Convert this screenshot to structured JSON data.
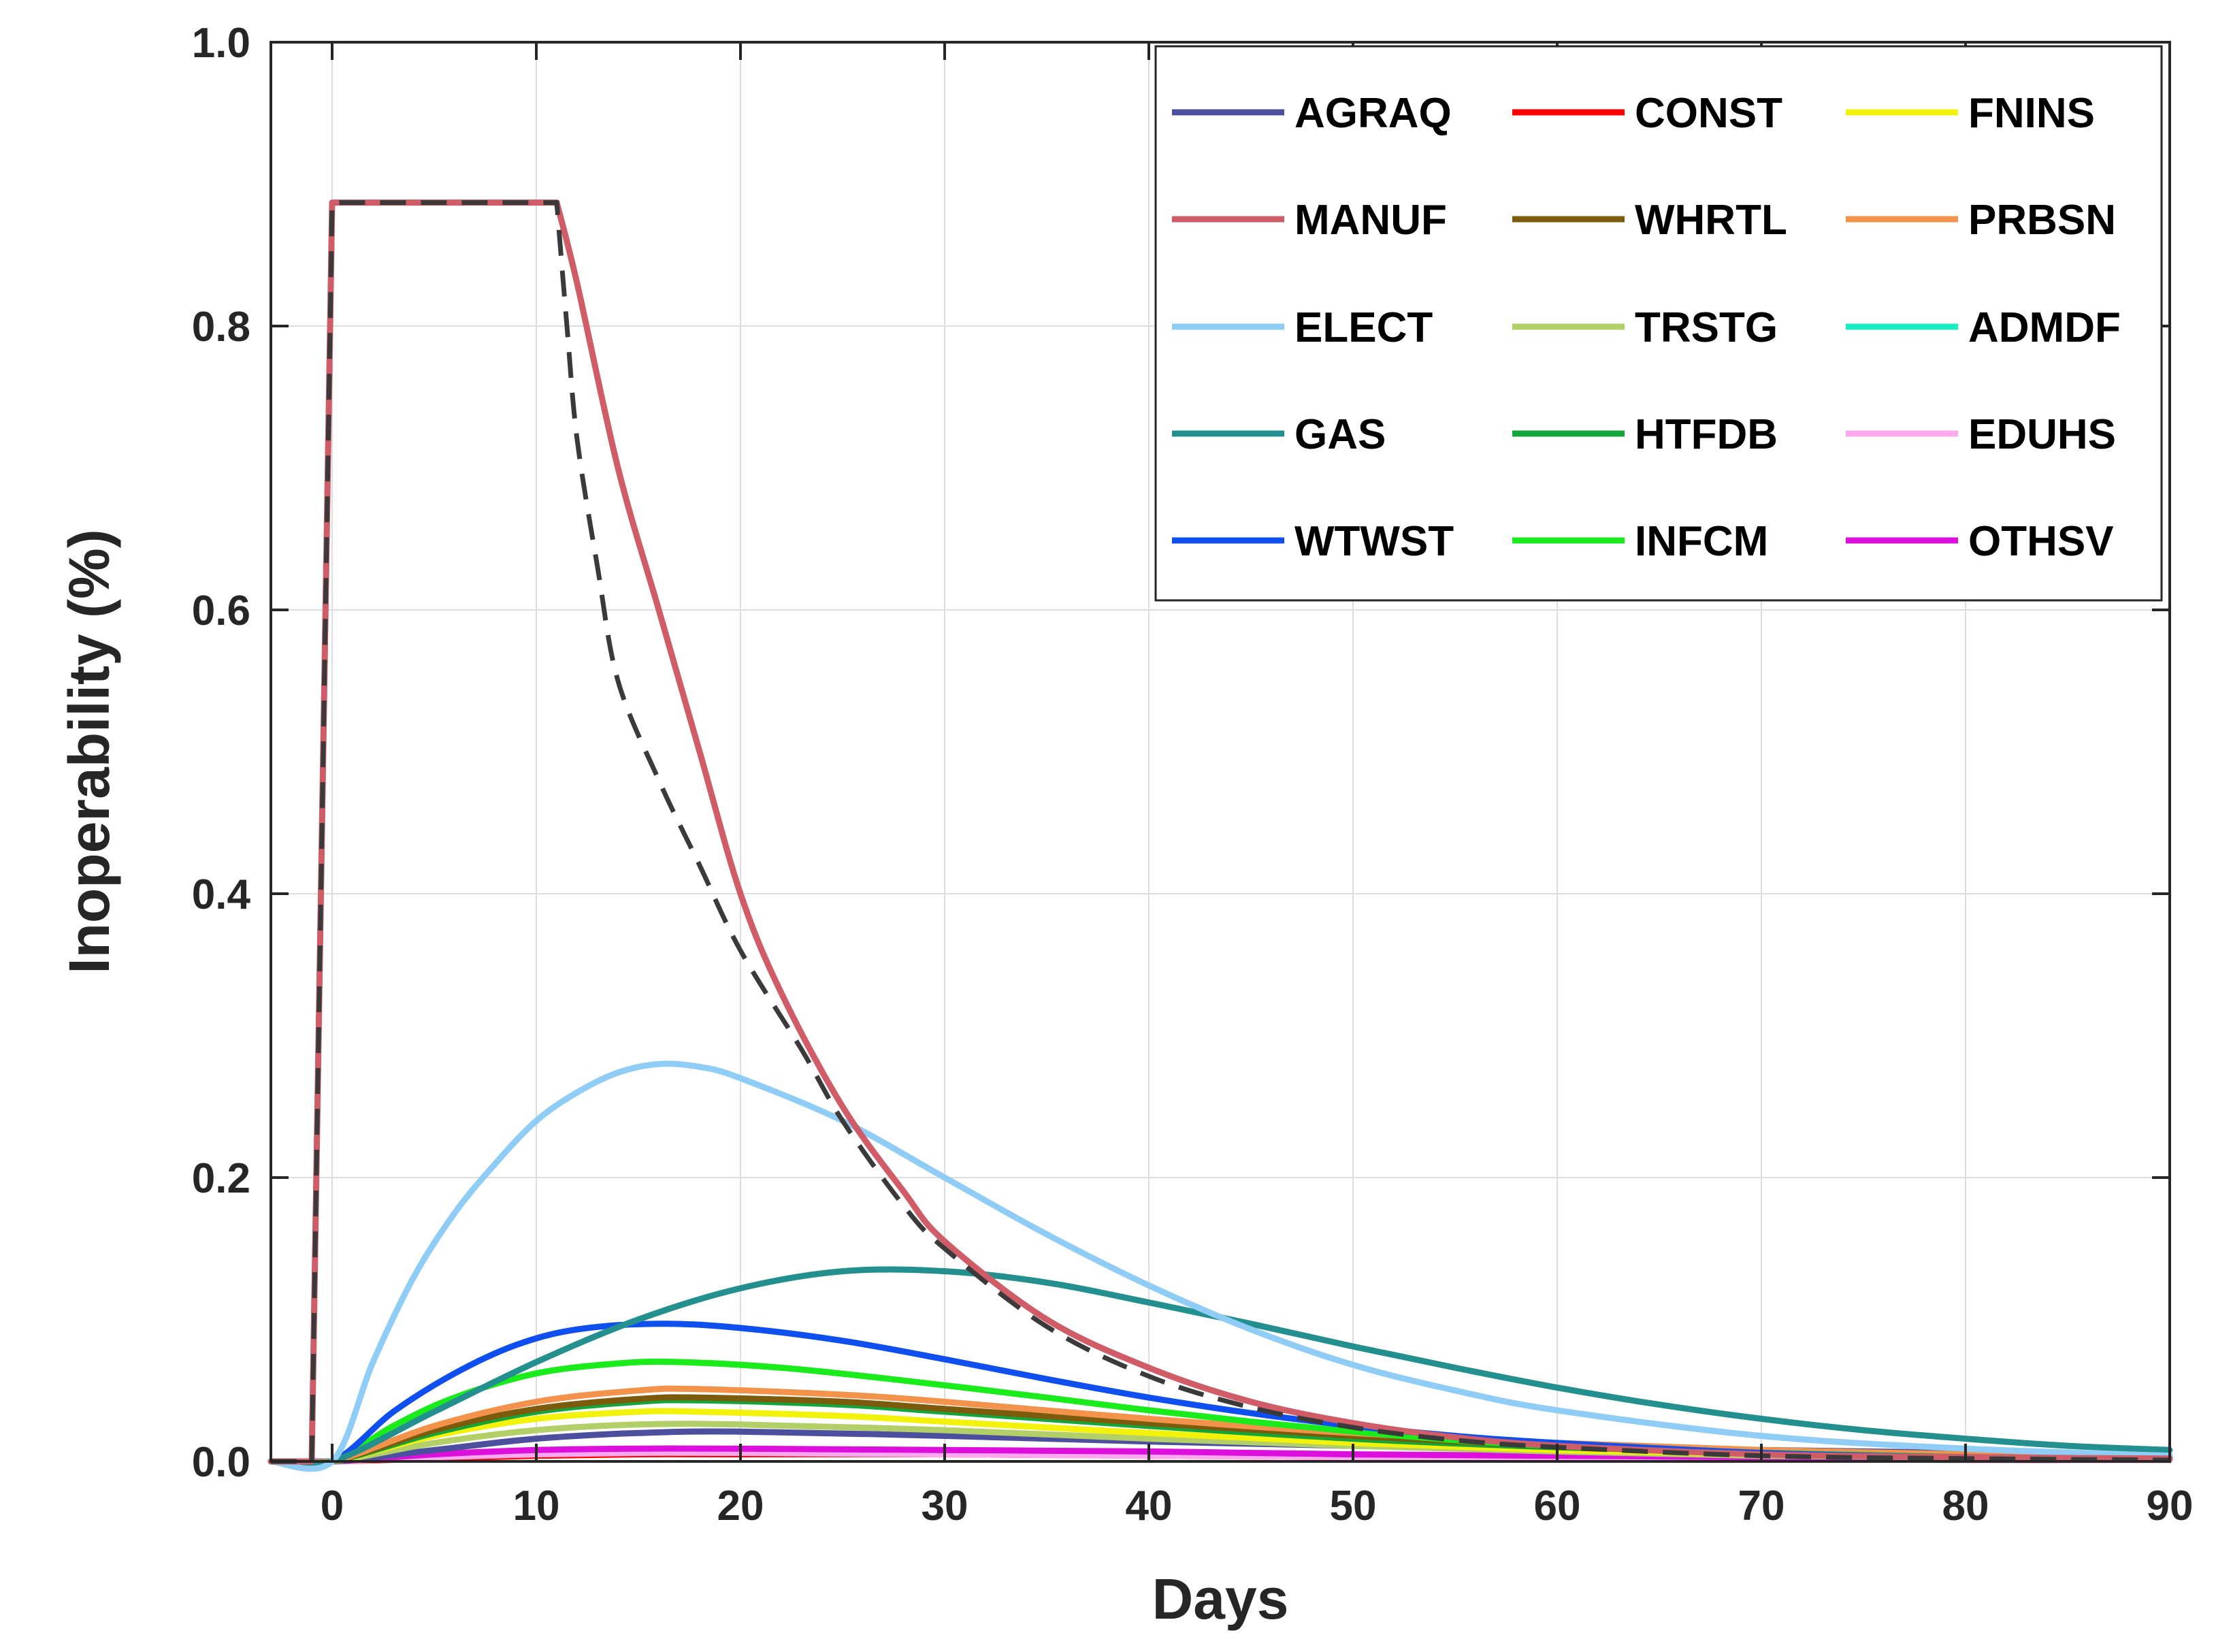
{
  "chart_data": {
    "type": "line",
    "title": "",
    "xlabel": "Days",
    "ylabel": "Inoperability (%)",
    "xlim": [
      -3,
      90
    ],
    "ylim": [
      0,
      1
    ],
    "grid": true,
    "legend_position": "top-right",
    "x_ticks": [
      0,
      10,
      20,
      30,
      40,
      50,
      60,
      70,
      80,
      90
    ],
    "x_tick_labels": [
      "0",
      "10",
      "20",
      "30",
      "40",
      "50",
      "60",
      "70",
      "80",
      "90"
    ],
    "y_ticks": [
      0,
      0.2,
      0.4,
      0.6,
      0.8,
      1.0
    ],
    "y_tick_labels": [
      "0.0",
      "0.2",
      "0.4",
      "0.6",
      "0.8",
      "1.0"
    ],
    "series": [
      {
        "name": "AGRAQ",
        "color": "#4b4f9e",
        "points": [
          [
            -3,
            0
          ],
          [
            0,
            0
          ],
          [
            5,
            0.008
          ],
          [
            10,
            0.016
          ],
          [
            15,
            0.02
          ],
          [
            20,
            0.021
          ],
          [
            30,
            0.018
          ],
          [
            40,
            0.014
          ],
          [
            50,
            0.011
          ],
          [
            60,
            0.009
          ],
          [
            70,
            0.008
          ],
          [
            80,
            0.006
          ],
          [
            90,
            0.004
          ]
        ]
      },
      {
        "name": "CONST",
        "color": "#ff0000",
        "points": [
          [
            -3,
            0
          ],
          [
            0,
            0
          ],
          [
            5,
            0.002
          ],
          [
            10,
            0.004
          ],
          [
            15,
            0.005
          ],
          [
            20,
            0.005
          ],
          [
            30,
            0.005
          ],
          [
            40,
            0.004
          ],
          [
            50,
            0.003
          ],
          [
            60,
            0.002
          ],
          [
            70,
            0.002
          ],
          [
            80,
            0.001
          ],
          [
            90,
            0.001
          ]
        ]
      },
      {
        "name": "FNINS",
        "color": "#f2f20a",
        "points": [
          [
            -3,
            0
          ],
          [
            0,
            0
          ],
          [
            5,
            0.018
          ],
          [
            10,
            0.03
          ],
          [
            15,
            0.035
          ],
          [
            18,
            0.035
          ],
          [
            25,
            0.032
          ],
          [
            30,
            0.028
          ],
          [
            40,
            0.02
          ],
          [
            50,
            0.013
          ],
          [
            60,
            0.008
          ],
          [
            70,
            0.005
          ],
          [
            80,
            0.003
          ],
          [
            90,
            0.002
          ]
        ]
      },
      {
        "name": "MANUF",
        "color": "#cf5c66",
        "points": [
          [
            -3,
            0
          ],
          [
            -1,
            0
          ],
          [
            0,
            0.887
          ],
          [
            11,
            0.887
          ],
          [
            12,
            0.83
          ],
          [
            14,
            0.7
          ],
          [
            16,
            0.6
          ],
          [
            18,
            0.5
          ],
          [
            20,
            0.4
          ],
          [
            22,
            0.33
          ],
          [
            25,
            0.25
          ],
          [
            28,
            0.19
          ],
          [
            30,
            0.155
          ],
          [
            35,
            0.1
          ],
          [
            40,
            0.066
          ],
          [
            45,
            0.042
          ],
          [
            50,
            0.027
          ],
          [
            55,
            0.017
          ],
          [
            60,
            0.011
          ],
          [
            70,
            0.005
          ],
          [
            80,
            0.003
          ],
          [
            90,
            0.002
          ]
        ]
      },
      {
        "name": "WHRTL",
        "color": "#7c5c0c",
        "points": [
          [
            -3,
            0
          ],
          [
            0,
            0
          ],
          [
            5,
            0.022
          ],
          [
            10,
            0.037
          ],
          [
            15,
            0.044
          ],
          [
            18,
            0.045
          ],
          [
            25,
            0.042
          ],
          [
            30,
            0.037
          ],
          [
            40,
            0.027
          ],
          [
            50,
            0.018
          ],
          [
            60,
            0.011
          ],
          [
            70,
            0.007
          ],
          [
            80,
            0.004
          ],
          [
            90,
            0.002
          ]
        ]
      },
      {
        "name": "PRBSN",
        "color": "#f3924b",
        "points": [
          [
            -3,
            0
          ],
          [
            0,
            0
          ],
          [
            5,
            0.025
          ],
          [
            10,
            0.042
          ],
          [
            15,
            0.05
          ],
          [
            18,
            0.051
          ],
          [
            25,
            0.047
          ],
          [
            30,
            0.042
          ],
          [
            40,
            0.03
          ],
          [
            50,
            0.02
          ],
          [
            60,
            0.013
          ],
          [
            70,
            0.008
          ],
          [
            80,
            0.005
          ],
          [
            90,
            0.003
          ]
        ]
      },
      {
        "name": "ELECT",
        "color": "#8fcdf7",
        "points": [
          [
            -3,
            0
          ],
          [
            0,
            0
          ],
          [
            2,
            0.07
          ],
          [
            4,
            0.13
          ],
          [
            6,
            0.175
          ],
          [
            8,
            0.21
          ],
          [
            10,
            0.24
          ],
          [
            12,
            0.26
          ],
          [
            14,
            0.274
          ],
          [
            16,
            0.28
          ],
          [
            18,
            0.278
          ],
          [
            20,
            0.27
          ],
          [
            25,
            0.24
          ],
          [
            30,
            0.2
          ],
          [
            35,
            0.16
          ],
          [
            40,
            0.124
          ],
          [
            45,
            0.093
          ],
          [
            50,
            0.068
          ],
          [
            55,
            0.05
          ],
          [
            60,
            0.036
          ],
          [
            70,
            0.018
          ],
          [
            80,
            0.009
          ],
          [
            90,
            0.004
          ]
        ]
      },
      {
        "name": "TRSTG",
        "color": "#b2cf68",
        "points": [
          [
            -3,
            0
          ],
          [
            0,
            0
          ],
          [
            5,
            0.013
          ],
          [
            10,
            0.022
          ],
          [
            15,
            0.026
          ],
          [
            20,
            0.026
          ],
          [
            30,
            0.022
          ],
          [
            40,
            0.016
          ],
          [
            50,
            0.011
          ],
          [
            60,
            0.007
          ],
          [
            70,
            0.004
          ],
          [
            80,
            0.003
          ],
          [
            90,
            0.002
          ]
        ]
      },
      {
        "name": "ADMDF",
        "color": "#18ecc0",
        "points": [
          [
            -3,
            0
          ],
          [
            0,
            0
          ],
          [
            5,
            0.004
          ],
          [
            10,
            0.006
          ],
          [
            15,
            0.007
          ],
          [
            20,
            0.007
          ],
          [
            30,
            0.006
          ],
          [
            40,
            0.005
          ],
          [
            50,
            0.004
          ],
          [
            60,
            0.003
          ],
          [
            70,
            0.002
          ],
          [
            80,
            0.001
          ],
          [
            90,
            0.001
          ]
        ]
      },
      {
        "name": "GAS",
        "color": "#238f8f",
        "points": [
          [
            -3,
            0
          ],
          [
            0,
            0
          ],
          [
            5,
            0.035
          ],
          [
            10,
            0.07
          ],
          [
            15,
            0.1
          ],
          [
            20,
            0.122
          ],
          [
            25,
            0.134
          ],
          [
            30,
            0.134
          ],
          [
            35,
            0.126
          ],
          [
            40,
            0.112
          ],
          [
            45,
            0.097
          ],
          [
            50,
            0.081
          ],
          [
            55,
            0.066
          ],
          [
            60,
            0.052
          ],
          [
            65,
            0.04
          ],
          [
            70,
            0.03
          ],
          [
            75,
            0.022
          ],
          [
            80,
            0.016
          ],
          [
            85,
            0.011
          ],
          [
            90,
            0.008
          ]
        ]
      },
      {
        "name": "HTFDB",
        "color": "#13a53a",
        "points": [
          [
            -3,
            0
          ],
          [
            0,
            0
          ],
          [
            5,
            0.02
          ],
          [
            10,
            0.035
          ],
          [
            15,
            0.042
          ],
          [
            18,
            0.043
          ],
          [
            25,
            0.04
          ],
          [
            30,
            0.035
          ],
          [
            40,
            0.025
          ],
          [
            50,
            0.016
          ],
          [
            60,
            0.01
          ],
          [
            70,
            0.006
          ],
          [
            80,
            0.004
          ],
          [
            90,
            0.002
          ]
        ]
      },
      {
        "name": "EDUHS",
        "color": "#ffa8ef",
        "points": [
          [
            -3,
            0
          ],
          [
            0,
            0
          ],
          [
            5,
            0.003
          ],
          [
            10,
            0.005
          ],
          [
            15,
            0.006
          ],
          [
            20,
            0.006
          ],
          [
            30,
            0.005
          ],
          [
            40,
            0.004
          ],
          [
            50,
            0.003
          ],
          [
            60,
            0.002
          ],
          [
            70,
            0.002
          ],
          [
            80,
            0.001
          ],
          [
            90,
            0.001
          ]
        ]
      },
      {
        "name": "WTWST",
        "color": "#0f4ff0",
        "points": [
          [
            -3,
            0
          ],
          [
            0,
            0
          ],
          [
            3,
            0.035
          ],
          [
            6,
            0.062
          ],
          [
            9,
            0.082
          ],
          [
            12,
            0.093
          ],
          [
            16,
            0.097
          ],
          [
            20,
            0.094
          ],
          [
            25,
            0.085
          ],
          [
            30,
            0.072
          ],
          [
            35,
            0.058
          ],
          [
            40,
            0.045
          ],
          [
            45,
            0.034
          ],
          [
            50,
            0.025
          ],
          [
            55,
            0.018
          ],
          [
            60,
            0.013
          ],
          [
            70,
            0.006
          ],
          [
            80,
            0.003
          ],
          [
            90,
            0.002
          ]
        ]
      },
      {
        "name": "INFCM",
        "color": "#1aeb1a",
        "points": [
          [
            -3,
            0
          ],
          [
            0,
            0
          ],
          [
            3,
            0.025
          ],
          [
            6,
            0.045
          ],
          [
            10,
            0.062
          ],
          [
            14,
            0.069
          ],
          [
            17,
            0.07
          ],
          [
            22,
            0.066
          ],
          [
            28,
            0.057
          ],
          [
            35,
            0.045
          ],
          [
            40,
            0.036
          ],
          [
            45,
            0.028
          ],
          [
            50,
            0.021
          ],
          [
            55,
            0.015
          ],
          [
            60,
            0.011
          ],
          [
            70,
            0.006
          ],
          [
            80,
            0.003
          ],
          [
            90,
            0.002
          ]
        ]
      },
      {
        "name": "OTHSV",
        "color": "#dc0fdc",
        "points": [
          [
            -3,
            0
          ],
          [
            0,
            0
          ],
          [
            5,
            0.005
          ],
          [
            10,
            0.008
          ],
          [
            15,
            0.009
          ],
          [
            20,
            0.009
          ],
          [
            30,
            0.008
          ],
          [
            40,
            0.007
          ],
          [
            50,
            0.005
          ],
          [
            60,
            0.004
          ],
          [
            70,
            0.003
          ],
          [
            80,
            0.002
          ],
          [
            90,
            0.002
          ]
        ]
      }
    ],
    "reference_curve": {
      "style": "dashed",
      "color": "#3a3a3a",
      "points": [
        [
          -3,
          0
        ],
        [
          -1,
          0
        ],
        [
          0,
          0.887
        ],
        [
          11,
          0.887
        ],
        [
          11.5,
          0.8
        ],
        [
          12,
          0.72
        ],
        [
          13,
          0.63
        ],
        [
          14,
          0.55
        ],
        [
          16,
          0.48
        ],
        [
          18,
          0.42
        ],
        [
          20,
          0.36
        ],
        [
          23,
          0.29
        ],
        [
          25,
          0.24
        ],
        [
          28,
          0.18
        ],
        [
          30,
          0.15
        ],
        [
          35,
          0.095
        ],
        [
          40,
          0.06
        ],
        [
          45,
          0.038
        ],
        [
          50,
          0.024
        ],
        [
          55,
          0.015
        ],
        [
          60,
          0.01
        ],
        [
          70,
          0.004
        ],
        [
          80,
          0.002
        ],
        [
          90,
          0.001
        ]
      ]
    },
    "legend": {
      "columns": 3,
      "rows": [
        [
          "AGRAQ",
          "CONST",
          "FNINS"
        ],
        [
          "MANUF",
          "WHRTL",
          "PRBSN"
        ],
        [
          "ELECT",
          "TRSTG",
          "ADMDF"
        ],
        [
          "GAS",
          "HTFDB",
          "EDUHS"
        ],
        [
          "WTWST",
          "INFCM",
          "OTHSV"
        ]
      ]
    }
  }
}
